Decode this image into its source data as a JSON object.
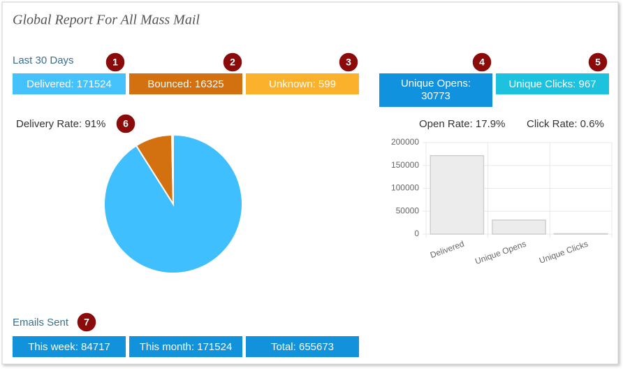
{
  "header": {
    "title": "Global Report For All Mass Mail"
  },
  "last30": {
    "label": "Last 30 Days",
    "stats": [
      {
        "text": "Delivered: 171524",
        "color": "#45c1fb"
      },
      {
        "text": "Bounced: 16325",
        "color": "#d3700f"
      },
      {
        "text": "Unknown: 599",
        "color": "#fbb12c"
      },
      {
        "text": "Unique Opens: 30773",
        "color": "#1192de"
      },
      {
        "text": "Unique Clicks: 967",
        "color": "#1cc2de"
      }
    ]
  },
  "callouts": [
    "1",
    "2",
    "3",
    "4",
    "5",
    "6",
    "7"
  ],
  "delivery_rate": "Delivery Rate: 91%",
  "open_rate": "Open Rate: 17.9%",
  "click_rate": "Click Rate: 0.6%",
  "pie": {
    "type": "pie",
    "values": [
      171524,
      16325,
      599
    ],
    "colors": [
      "#40bfff",
      "#d3700f",
      "#fbb12c"
    ]
  },
  "bar": {
    "type": "bar",
    "categories": [
      "Delivered",
      "Unique Opens",
      "Unique Clicks"
    ],
    "values": [
      171524,
      30773,
      967
    ],
    "color": "#ececec",
    "ylim": [
      0,
      200000
    ],
    "yticks": [
      0,
      50000,
      100000,
      150000,
      200000
    ],
    "grid": true
  },
  "emails_sent": {
    "label": "Emails Sent",
    "stats": [
      "This week: 84717",
      "This month: 171524",
      "Total: 655673"
    ],
    "color": "#1192db"
  }
}
